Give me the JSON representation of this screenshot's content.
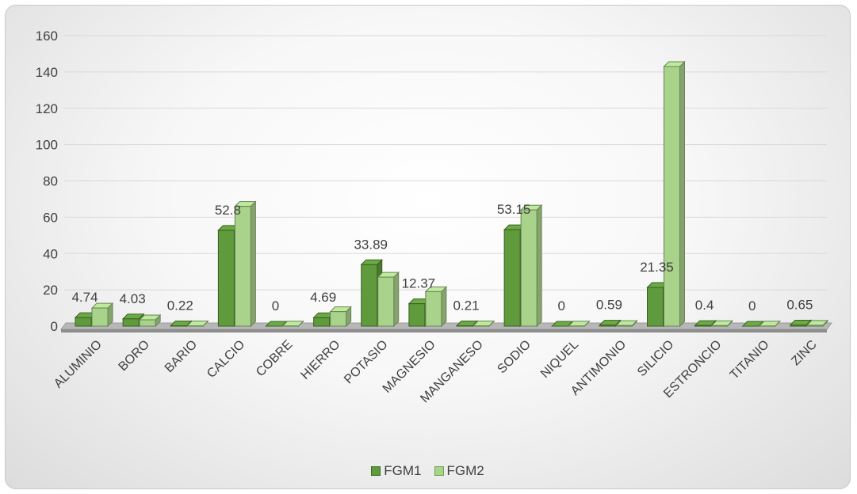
{
  "chart_data": {
    "type": "bar",
    "title": "",
    "xlabel": "",
    "ylabel": "",
    "ylim": [
      0,
      160
    ],
    "yticks": [
      0,
      20,
      40,
      60,
      80,
      100,
      120,
      140,
      160
    ],
    "grid": true,
    "legend_position": "bottom",
    "categories": [
      "ALUMINIO",
      "BORO",
      "BARIO",
      "CALCIO",
      "COBRE",
      "HIERRO",
      "POTASIO",
      "MAGNESIO",
      "MANGANESO",
      "SODIO",
      "NIQUEL",
      "ANTIMONIO",
      "SILICIO",
      "ESTRONCIO",
      "TITANIO",
      "ZINC"
    ],
    "series": [
      {
        "name": "FGM1",
        "color": "#5f9a3c",
        "values": [
          4.74,
          4.03,
          0.22,
          52.8,
          0,
          4.69,
          33.89,
          12.37,
          0.21,
          53.15,
          0,
          0.59,
          21.35,
          0.4,
          0,
          0.65
        ],
        "labels": [
          "4.74",
          "4.03",
          "0.22",
          "52.8",
          "0",
          "4.69",
          "33.89",
          "12.37",
          "0.21",
          "53.15",
          "0",
          "0.59",
          "21.35",
          "0.4",
          "0",
          "0.65"
        ]
      },
      {
        "name": "FGM2",
        "color": "#a9d28a",
        "values": [
          10,
          3.5,
          0.2,
          66,
          0.1,
          8,
          27,
          19,
          0.2,
          64,
          0.1,
          0.4,
          143,
          0.3,
          0.1,
          0.5
        ]
      }
    ]
  }
}
